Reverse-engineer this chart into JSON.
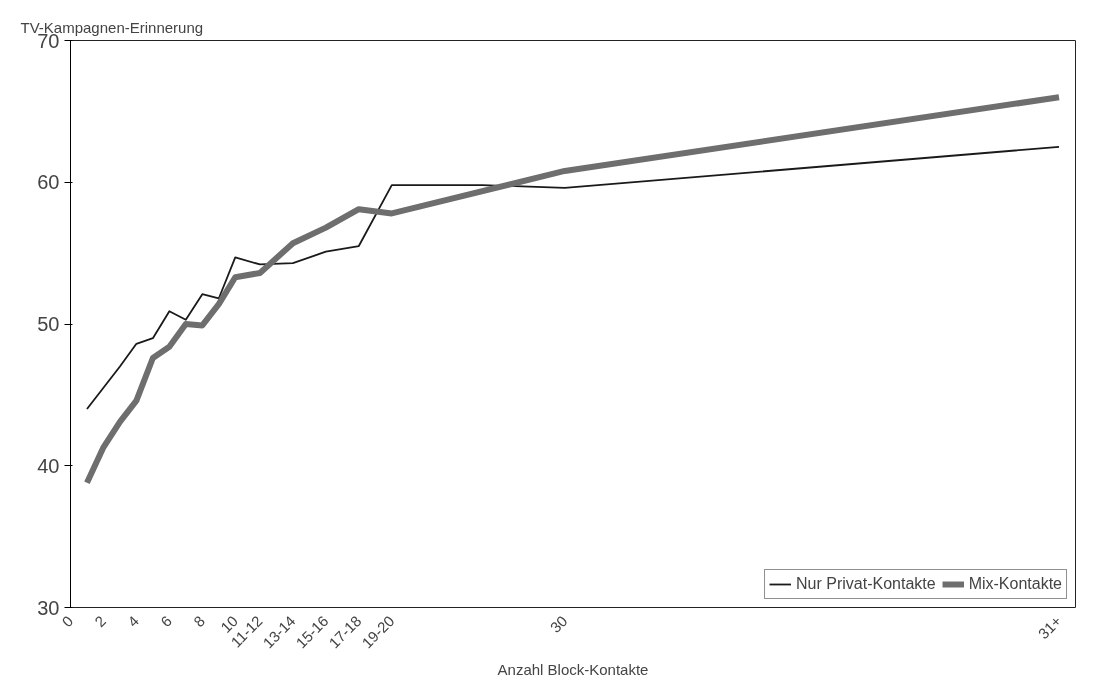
{
  "chart_data": {
    "type": "line",
    "ylabel": "TV-Kampagnen-Erinnerung",
    "xlabel": "Anzahl Block-Kontakte",
    "xlim": [
      0,
      61
    ],
    "ylim": [
      30,
      70
    ],
    "yticks": [
      30,
      40,
      50,
      60,
      70
    ],
    "xticks": [
      0,
      2,
      4,
      6,
      8,
      10,
      {
        "value": 11.5,
        "label": "11-12"
      },
      {
        "value": 13.5,
        "label": "13-14"
      },
      {
        "value": 15.5,
        "label": "15-16"
      },
      {
        "value": 17.5,
        "label": "17-18"
      },
      {
        "value": 19.5,
        "label": "19-20"
      },
      30,
      {
        "value": 60,
        "label": "31+"
      }
    ],
    "grid": false,
    "legend": "bottom right",
    "series": [
      {
        "name": "Nur Privat-Kontakte",
        "color": "#1a1a1a",
        "x": [
          1,
          2,
          3,
          4,
          5,
          6,
          7,
          8,
          9,
          10,
          11.5,
          13.5,
          15.5,
          17.5,
          19.5,
          25,
          30,
          60
        ],
        "values": [
          44,
          45.5,
          47,
          48.6,
          49,
          50.9,
          50.3,
          52.1,
          51.8,
          54.7,
          54.2,
          54.3,
          55.1,
          55.5,
          59.8,
          59.8,
          59.6,
          62.5
        ]
      },
      {
        "name": "Mix-Kontakte",
        "color": "#6e6e6e",
        "x": [
          1,
          2,
          3,
          4,
          5,
          6,
          7,
          8,
          9,
          10,
          11.5,
          13.5,
          15.5,
          17.5,
          19.5,
          30,
          60
        ],
        "values": [
          38.8,
          41.3,
          43.1,
          44.6,
          47.6,
          48.4,
          50,
          49.9,
          51.4,
          53.3,
          53.6,
          55.7,
          56.8,
          58.1,
          57.8,
          60.8,
          66
        ]
      }
    ]
  }
}
